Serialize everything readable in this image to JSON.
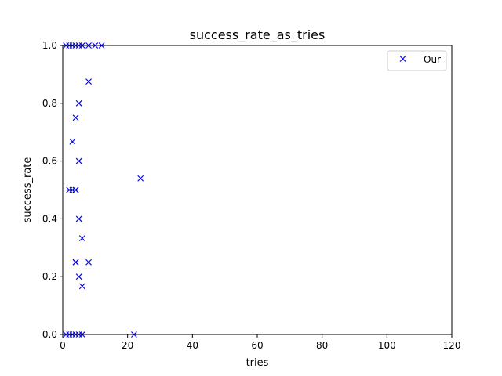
{
  "chart_data": {
    "type": "scatter",
    "title": "success_rate_as_tries",
    "xlabel": "tries",
    "ylabel": "success_rate",
    "xlim": [
      0,
      120
    ],
    "ylim": [
      0,
      1
    ],
    "xticks": [
      "0",
      "20",
      "40",
      "60",
      "80",
      "100",
      "120"
    ],
    "yticks": [
      "0.0",
      "0.2",
      "0.4",
      "0.6",
      "0.8",
      "1.0"
    ],
    "grid": false,
    "legend_position": "top-right",
    "marker": "x",
    "series": [
      {
        "name": "Our",
        "color": "#0000ff",
        "x": [
          1,
          2,
          3,
          4,
          5,
          6,
          8,
          10,
          12,
          8,
          5,
          4,
          3,
          2,
          4,
          3,
          4,
          5,
          4,
          5,
          6,
          4,
          8,
          5,
          6,
          24,
          22,
          1,
          2,
          3,
          4,
          5,
          6
        ],
        "y": [
          1.0,
          1.0,
          1.0,
          1.0,
          1.0,
          1.0,
          1.0,
          1.0,
          1.0,
          0.875,
          0.8,
          0.75,
          0.667,
          0.5,
          0.5,
          0.5,
          0.5,
          0.6,
          0.25,
          0.4,
          0.333,
          0.25,
          0.25,
          0.2,
          0.167,
          0.54,
          0.0,
          0.0,
          0.0,
          0.0,
          0.0,
          0.0,
          0.0
        ]
      }
    ]
  }
}
